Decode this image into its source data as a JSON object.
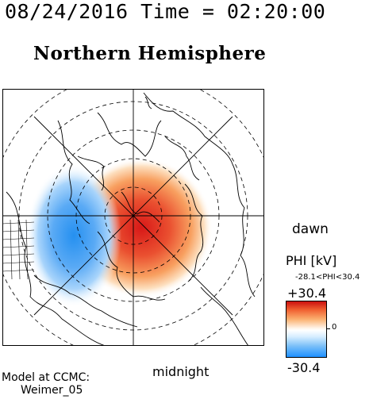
{
  "header": {
    "timestamp": "08/24/2016 Time = 02:20:00",
    "title": "Northern Hemisphere"
  },
  "map": {
    "labels": {
      "dawn": "dawn",
      "midnight": "midnight"
    },
    "potential_field": {
      "max_kV": 30.4,
      "min_kV": -28.1
    }
  },
  "colorbar": {
    "title": "PHI [kV]",
    "range_text": "-28.1<PHI<30.4",
    "max_label": "+30.4",
    "min_label": "-30.4",
    "zero_label": "0",
    "colors": [
      "#cc1010",
      "#f06030",
      "#fbb070",
      "#ffffff",
      "#7cc0f8",
      "#1e90ff"
    ]
  },
  "credits": {
    "line1": "Model at CCMC:",
    "line2": "Weimer_05"
  }
}
